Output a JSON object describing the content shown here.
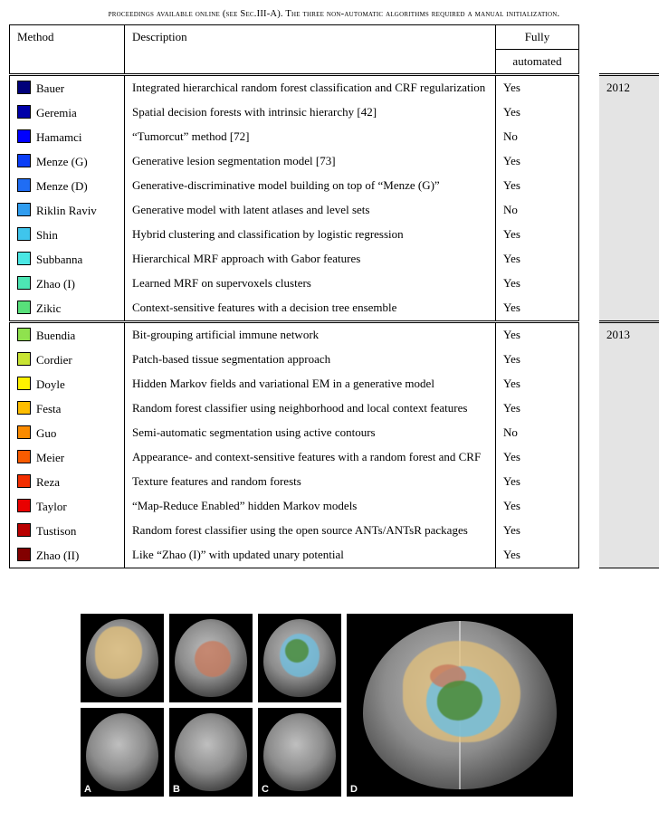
{
  "caption": "proceedings available online (see Sec.III-A). The three non-automatic algorithms required a manual initialization.",
  "columns": {
    "method": "Method",
    "description": "Description",
    "auto": "Fully",
    "auto2": "automated"
  },
  "groups": [
    {
      "year": "2012",
      "rows": [
        {
          "color": "#00007a",
          "method": "Bauer",
          "desc": "Integrated hierarchical random forest classification and CRF regularization",
          "auto": "Yes"
        },
        {
          "color": "#0000a8",
          "method": "Geremia",
          "desc": "Spatial decision forests with intrinsic hierarchy [42]",
          "auto": "Yes"
        },
        {
          "color": "#0000ff",
          "method": "Hamamci",
          "desc": "“Tumorcut” method [72]",
          "auto": "No"
        },
        {
          "color": "#0b3ef6",
          "method": "Menze (G)",
          "desc": "Generative lesion segmentation model [73]",
          "auto": "Yes"
        },
        {
          "color": "#1f6df4",
          "method": "Menze (D)",
          "desc": "Generative-discriminative model building on top of “Menze (G)”",
          "auto": "Yes"
        },
        {
          "color": "#2f9df0",
          "method": "Riklin Raviv",
          "desc": "Generative model with latent atlases and level sets",
          "auto": "No"
        },
        {
          "color": "#3fc5ec",
          "method": "Shin",
          "desc": "Hybrid clustering and classification by logistic regression",
          "auto": "Yes"
        },
        {
          "color": "#4ae7e4",
          "method": "Subbanna",
          "desc": "Hierarchical MRF approach with Gabor features",
          "auto": "Yes"
        },
        {
          "color": "#4de6b4",
          "method": "Zhao (I)",
          "desc": "Learned MRF on supervoxels clusters",
          "auto": "Yes"
        },
        {
          "color": "#58e07a",
          "method": "Zikic",
          "desc": "Context-sensitive features with a decision tree ensemble",
          "auto": "Yes"
        }
      ]
    },
    {
      "year": "2013",
      "rows": [
        {
          "color": "#8fe24e",
          "method": "Buendia",
          "desc": "Bit-grouping artificial immune network",
          "auto": "Yes"
        },
        {
          "color": "#c8e433",
          "method": "Cordier",
          "desc": "Patch-based tissue segmentation approach",
          "auto": "Yes"
        },
        {
          "color": "#fef200",
          "method": "Doyle",
          "desc": "Hidden Markov fields and variational EM in a generative model",
          "auto": "Yes"
        },
        {
          "color": "#fdbd00",
          "method": "Festa",
          "desc": "Random forest classifier using neighborhood and local context features",
          "auto": "Yes"
        },
        {
          "color": "#fb8b00",
          "method": "Guo",
          "desc": "Semi-automatic segmentation using active contours",
          "auto": "No"
        },
        {
          "color": "#f85b00",
          "method": "Meier",
          "desc": "Appearance- and context-sensitive features with a random forest and CRF",
          "auto": "Yes"
        },
        {
          "color": "#f22e00",
          "method": "Reza",
          "desc": "Texture features and random forests",
          "auto": "Yes"
        },
        {
          "color": "#e90000",
          "method": "Taylor",
          "desc": "“Map-Reduce Enabled” hidden Markov models",
          "auto": "Yes"
        },
        {
          "color": "#b90000",
          "method": "Tustison",
          "desc": "Random forest classifier using the open source ANTs/ANTsR packages",
          "auto": "Yes"
        },
        {
          "color": "#820000",
          "method": "Zhao (II)",
          "desc": "Like “Zhao (I)” with updated unary potential",
          "auto": "Yes"
        }
      ]
    }
  ],
  "figure": {
    "small_w": 92,
    "small_h": 98,
    "big_w": 250,
    "big_h": 202,
    "overlay_colors": {
      "edema": "#e4c17a",
      "nonenh": "#c87a5d",
      "enh": "#6fbfe0",
      "necrotic": "#4d8c3a"
    },
    "letters": [
      "A",
      "B",
      "C",
      "D"
    ]
  }
}
